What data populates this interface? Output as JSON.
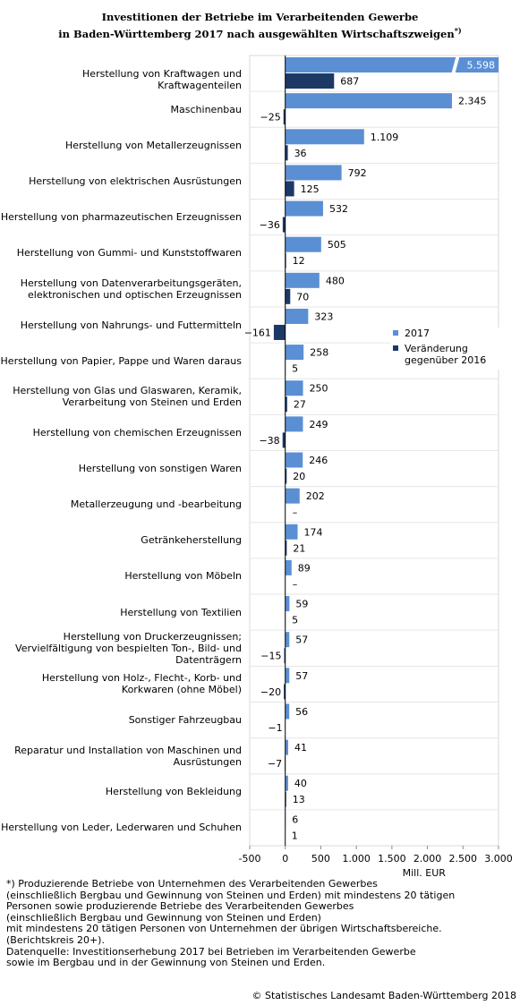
{
  "chart_data": {
    "type": "bar",
    "orientation": "horizontal",
    "title": "Investitionen der Betriebe im Verarbeitenden Gewerbe\nin Baden-Württemberg 2017 nach ausgewählten Wirtschaftszweigen",
    "title_note": "*)",
    "categories": [
      "Herstellung von Kraftwagen und Kraftwagenteilen",
      "Maschinenbau",
      "Herstellung von Metallerzeugnissen",
      "Herstellung von elektrischen Ausrüstungen",
      "Herstellung von pharmazeutischen Erzeugnissen",
      "Herstellung von Gummi- und Kunststoffwaren",
      "Herstellung von Datenverarbeitungsgeräten,\nelektronischen und optischen Erzeugnissen",
      "Herstellung von Nahrungs- und Futtermitteln",
      "Herstellung von Papier, Pappe und Waren daraus",
      "Herstellung von Glas und Glaswaren, Keramik,\nVerarbeitung von Steinen und Erden",
      "Herstellung von chemischen Erzeugnissen",
      "Herstellung von sonstigen Waren",
      "Metallerzeugung und -bearbeitung",
      "Getränkeherstellung",
      "Herstellung von Möbeln",
      "Herstellung von Textilien",
      "Herstellung von Druckerzeugnissen;\nVervielfältigung von bespielten Ton-, Bild- und\nDatenträgern",
      "Herstellung von Holz-, Flecht-, Korb- und\nKorkwaren (ohne Möbel)",
      "Sonstiger Fahrzeugbau",
      "Reparatur und Installation von Maschinen und\nAusrüstungen",
      "Herstellung von Bekleidung",
      "Herstellung von Leder, Lederwaren und Schuhen"
    ],
    "series": [
      {
        "name": "2017",
        "color": "#5b8fd4",
        "values": [
          5598,
          2345,
          1109,
          792,
          532,
          505,
          480,
          323,
          258,
          250,
          249,
          246,
          202,
          174,
          89,
          59,
          57,
          57,
          56,
          41,
          40,
          6
        ],
        "value_labels": [
          "5.598",
          "2.345",
          "1.109",
          "792",
          "532",
          "505",
          "480",
          "323",
          "258",
          "250",
          "249",
          "246",
          "202",
          "174",
          "89",
          "59",
          "57",
          "57",
          "56",
          "41",
          "40",
          "6"
        ]
      },
      {
        "name": "Veränderung gegenüber 2016",
        "color": "#1c3966",
        "values": [
          687,
          -25,
          36,
          125,
          -36,
          12,
          70,
          -161,
          5,
          27,
          -38,
          20,
          null,
          21,
          null,
          5,
          -15,
          -20,
          -1,
          -7,
          13,
          1
        ],
        "value_labels": [
          "687",
          "−25",
          "36",
          "125",
          "−36",
          "12",
          "70",
          "−161",
          "5",
          "27",
          "−38",
          "20",
          "–",
          "21",
          "–",
          "5",
          "−15",
          "−20",
          "−1",
          "−7",
          "13",
          "1"
        ]
      }
    ],
    "xlim": [
      -500,
      3000
    ],
    "xticks": [
      -500,
      0,
      500,
      {
        "value": 1000,
        "label": "1.000"
      },
      {
        "value": 1500,
        "label": "1.500"
      },
      {
        "value": 2000,
        "label": "2.000"
      },
      {
        "value": 2500,
        "label": "2.500"
      },
      {
        "value": 3000,
        "label": "3.000"
      }
    ],
    "xlabel": "Mill. EUR",
    "footnote": "*) Produzierende Betriebe von Unternehmen des Verarbeitenden Gewerbes\n(einschließlich Bergbau und Gewinnung von Steinen und Erden) mit mindestens 20 tätigen\nPersonen sowie produzierende Betriebe des Verarbeitenden Gewerbes\n(einschließlich Bergbau und Gewinnung von Steinen und Erden)\nmit mindestens 20 tätigen Personen von Unternehmen der übrigen Wirtschaftsbereiche.\n(Berichtskreis 20+).\nDatenquelle: Investitionserhebung 2017 bei Betrieben im Verarbeitenden Gewerbe\nsowie im Bergbau und in der Gewinnung von Steinen und Erden.",
    "source": "© Statistisches Landesamt Baden-Württemberg 2018"
  }
}
